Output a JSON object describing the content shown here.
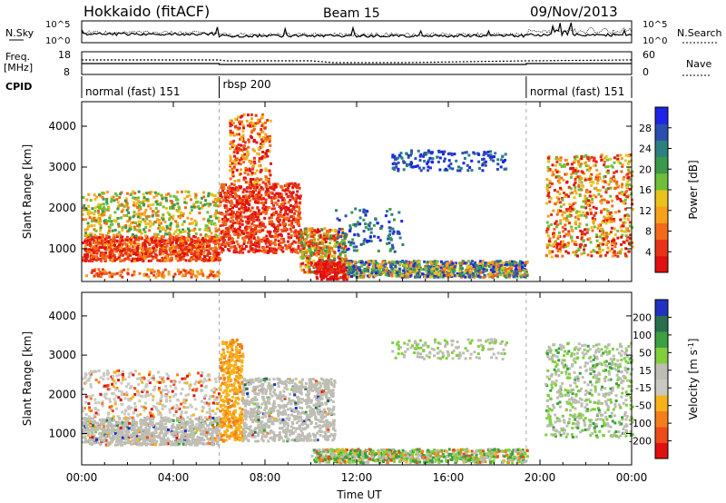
{
  "header": {
    "station": "Hokkaido (fitACF)",
    "beam": "Beam 15",
    "date": "09/Nov/2013"
  },
  "noise_panel": {
    "left_label": "N.Sky",
    "right_label": "N.Search",
    "left_ticks": [
      "10^5",
      "10^0"
    ],
    "right_ticks": [
      "10^5",
      "10^0"
    ]
  },
  "freq_panel": {
    "left_label_line1": "Freq.",
    "left_label_line2": "[MHz]",
    "right_label": "Nave",
    "left_ticks": [
      "18",
      "8"
    ],
    "right_ticks": [
      "60",
      "0"
    ]
  },
  "cpid": {
    "label": "CPID",
    "segments": [
      {
        "name": "normal (fast) 151",
        "start_hour": 0,
        "end_hour": 6
      },
      {
        "name": "rbsp 200",
        "start_hour": 6,
        "end_hour": 19.4
      },
      {
        "name": "normal (fast) 151",
        "start_hour": 19.4,
        "end_hour": 24
      }
    ]
  },
  "chart_data": [
    {
      "type": "heatmap",
      "panel": "power",
      "ylabel": "Slant Range [km]",
      "ylim": [
        200,
        4600
      ],
      "yticks": [
        "1000",
        "2000",
        "3000",
        "4000"
      ],
      "xlim": [
        0,
        24
      ],
      "colorbar": {
        "label": "Power [dB]",
        "ticks": [
          "28",
          "24",
          "20",
          "16",
          "12",
          "8",
          "4"
        ],
        "range": [
          0,
          32
        ],
        "colors": [
          "#1d24e8",
          "#2b4fb0",
          "#2e7f80",
          "#3b9a4a",
          "#6fbf3a",
          "#e9c21a",
          "#f7a01a",
          "#f26a1a",
          "#e8321a",
          "#e0100f"
        ]
      }
    },
    {
      "type": "heatmap",
      "panel": "velocity",
      "ylabel": "Slant Range [km]",
      "ylim": [
        200,
        4600
      ],
      "yticks": [
        "1000",
        "2000",
        "3000",
        "4000"
      ],
      "xlim": [
        0,
        24
      ],
      "colorbar": {
        "label_main": "Velocity [m s",
        "label_sup": "-1",
        "label_end": "]",
        "ticks": [
          "200",
          "100",
          "50",
          "15",
          "-15",
          "-50",
          "-100",
          "-200"
        ],
        "colors": [
          "#2030c0",
          "#2a6e50",
          "#3aa040",
          "#7fd03c",
          "#bdbdb4",
          "#c9c9c1",
          "#f7b21a",
          "#f47f1a",
          "#ee4a1a",
          "#e01010"
        ]
      }
    }
  ],
  "time_axis": {
    "label": "Time UT",
    "ticks": [
      "00:00",
      "04:00",
      "08:00",
      "12:00",
      "16:00",
      "20:00",
      "00:00"
    ]
  }
}
